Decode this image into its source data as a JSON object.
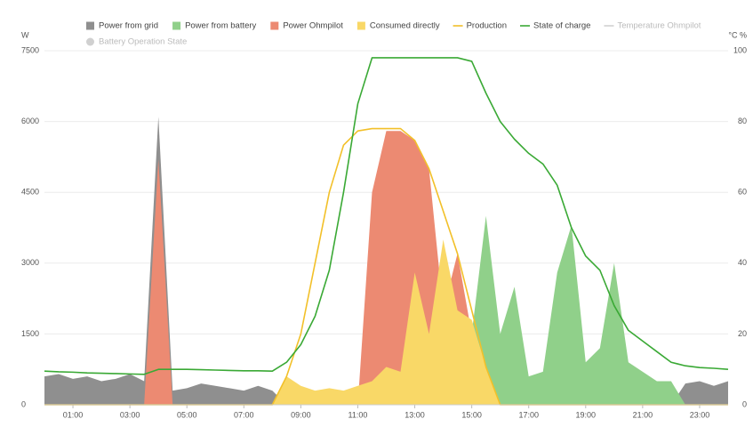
{
  "chart_data": {
    "type": "area",
    "y_label": "W",
    "y2_label": "°C  %",
    "x": [
      0,
      0.5,
      1,
      1.5,
      2,
      2.5,
      3,
      3.5,
      4,
      4.5,
      5,
      5.5,
      6,
      6.5,
      7,
      7.5,
      8,
      8.5,
      9,
      9.5,
      10,
      10.5,
      11,
      11.5,
      12,
      12.5,
      13,
      13.5,
      14,
      14.5,
      15,
      15.5,
      16,
      16.5,
      17,
      17.5,
      18,
      18.5,
      19,
      19.5,
      20,
      20.5,
      21,
      21.5,
      22,
      22.5,
      23,
      23.5,
      24
    ],
    "xlim": [
      0,
      24
    ],
    "xticks": [
      {
        "value": 1,
        "label": "01:00"
      },
      {
        "value": 3,
        "label": "03:00"
      },
      {
        "value": 5,
        "label": "05:00"
      },
      {
        "value": 7,
        "label": "07:00"
      },
      {
        "value": 9,
        "label": "09:00"
      },
      {
        "value": 11,
        "label": "11:00"
      },
      {
        "value": 13,
        "label": "13:00"
      },
      {
        "value": 15,
        "label": "15:00"
      },
      {
        "value": 17,
        "label": "17:00"
      },
      {
        "value": 19,
        "label": "19:00"
      },
      {
        "value": 21,
        "label": "21:00"
      },
      {
        "value": 23,
        "label": "23:00"
      }
    ],
    "ylim": [
      0,
      7500
    ],
    "yticks": [
      0,
      1500,
      3000,
      4500,
      6000,
      7500
    ],
    "y2lim": [
      0,
      100
    ],
    "y2ticks": [
      0,
      20,
      40,
      60,
      80,
      100
    ],
    "grid": true,
    "series": [
      {
        "name": "Power from grid",
        "type": "area",
        "color": "#8f8f8f",
        "visible": true,
        "values": [
          600,
          650,
          550,
          600,
          500,
          550,
          650,
          500,
          6100,
          300,
          350,
          450,
          400,
          350,
          300,
          400,
          300,
          0,
          0,
          0,
          0,
          0,
          0,
          0,
          0,
          0,
          0,
          0,
          0,
          0,
          0,
          0,
          0,
          0,
          0,
          0,
          0,
          0,
          0,
          0,
          0,
          0,
          0,
          0,
          0,
          450,
          500,
          400,
          500
        ]
      },
      {
        "name": "Power from battery",
        "type": "area",
        "color": "#90d08a",
        "visible": true,
        "values": [
          0,
          0,
          0,
          0,
          0,
          0,
          0,
          0,
          0,
          0,
          0,
          0,
          0,
          0,
          0,
          0,
          0,
          0,
          0,
          0,
          0,
          0,
          0,
          0,
          0,
          0,
          0,
          0,
          0,
          0,
          1500,
          4000,
          1500,
          2500,
          600,
          700,
          2800,
          3800,
          900,
          1200,
          3000,
          900,
          700,
          500,
          500,
          0,
          0,
          0,
          0
        ]
      },
      {
        "name": "Power Ohmpilot",
        "type": "area",
        "color": "#ec8a72",
        "visible": true,
        "values": [
          0,
          0,
          0,
          0,
          0,
          0,
          0,
          0,
          5200,
          0,
          0,
          0,
          0,
          0,
          0,
          0,
          0,
          0,
          0,
          0,
          0,
          0,
          0,
          4500,
          5800,
          5800,
          5600,
          5000,
          2000,
          3200,
          1500,
          0,
          0,
          0,
          0,
          0,
          0,
          0,
          0,
          0,
          0,
          0,
          0,
          0,
          0,
          0,
          0,
          0,
          0
        ]
      },
      {
        "name": "Consumed directly",
        "type": "area",
        "color": "#f9d867",
        "visible": true,
        "values": [
          0,
          0,
          0,
          0,
          0,
          0,
          0,
          0,
          0,
          0,
          0,
          0,
          0,
          0,
          0,
          0,
          0,
          600,
          400,
          300,
          350,
          300,
          400,
          500,
          800,
          700,
          2800,
          1500,
          3500,
          2000,
          1800,
          800,
          0,
          0,
          0,
          0,
          0,
          0,
          0,
          0,
          0,
          0,
          0,
          0,
          0,
          0,
          0,
          0,
          0
        ]
      },
      {
        "name": "Production",
        "type": "line",
        "color": "#f2c029",
        "visible": true,
        "values": [
          0,
          0,
          0,
          0,
          0,
          0,
          0,
          0,
          0,
          0,
          0,
          0,
          0,
          0,
          0,
          0,
          0,
          600,
          1500,
          3000,
          4500,
          5500,
          5800,
          5850,
          5850,
          5850,
          5600,
          5000,
          4100,
          3200,
          2000,
          800,
          0,
          0,
          0,
          0,
          0,
          0,
          0,
          0,
          0,
          0,
          0,
          0,
          0,
          0,
          0,
          0,
          0
        ]
      },
      {
        "name": "State of charge",
        "type": "line",
        "color": "#3aa935",
        "visible": true,
        "axis": "y2",
        "values": [
          9.5,
          9.3,
          9.2,
          9,
          8.9,
          8.8,
          8.7,
          8.6,
          10,
          10,
          10,
          9.9,
          9.8,
          9.7,
          9.6,
          9.6,
          9.5,
          12,
          17,
          25,
          38,
          60,
          85,
          98,
          98,
          98,
          98,
          98,
          98,
          98,
          97,
          88,
          80,
          75,
          71,
          68,
          62,
          50,
          42,
          38,
          28,
          21,
          18,
          15,
          12,
          11,
          10.5,
          10.3,
          10
        ]
      },
      {
        "name": "Temperature Ohmpilot",
        "type": "line",
        "color": "#d0d0d0",
        "visible": false,
        "axis": "y2"
      },
      {
        "name": "Battery Operation State",
        "type": "circle",
        "color": "#d0d0d0",
        "visible": false
      }
    ]
  }
}
